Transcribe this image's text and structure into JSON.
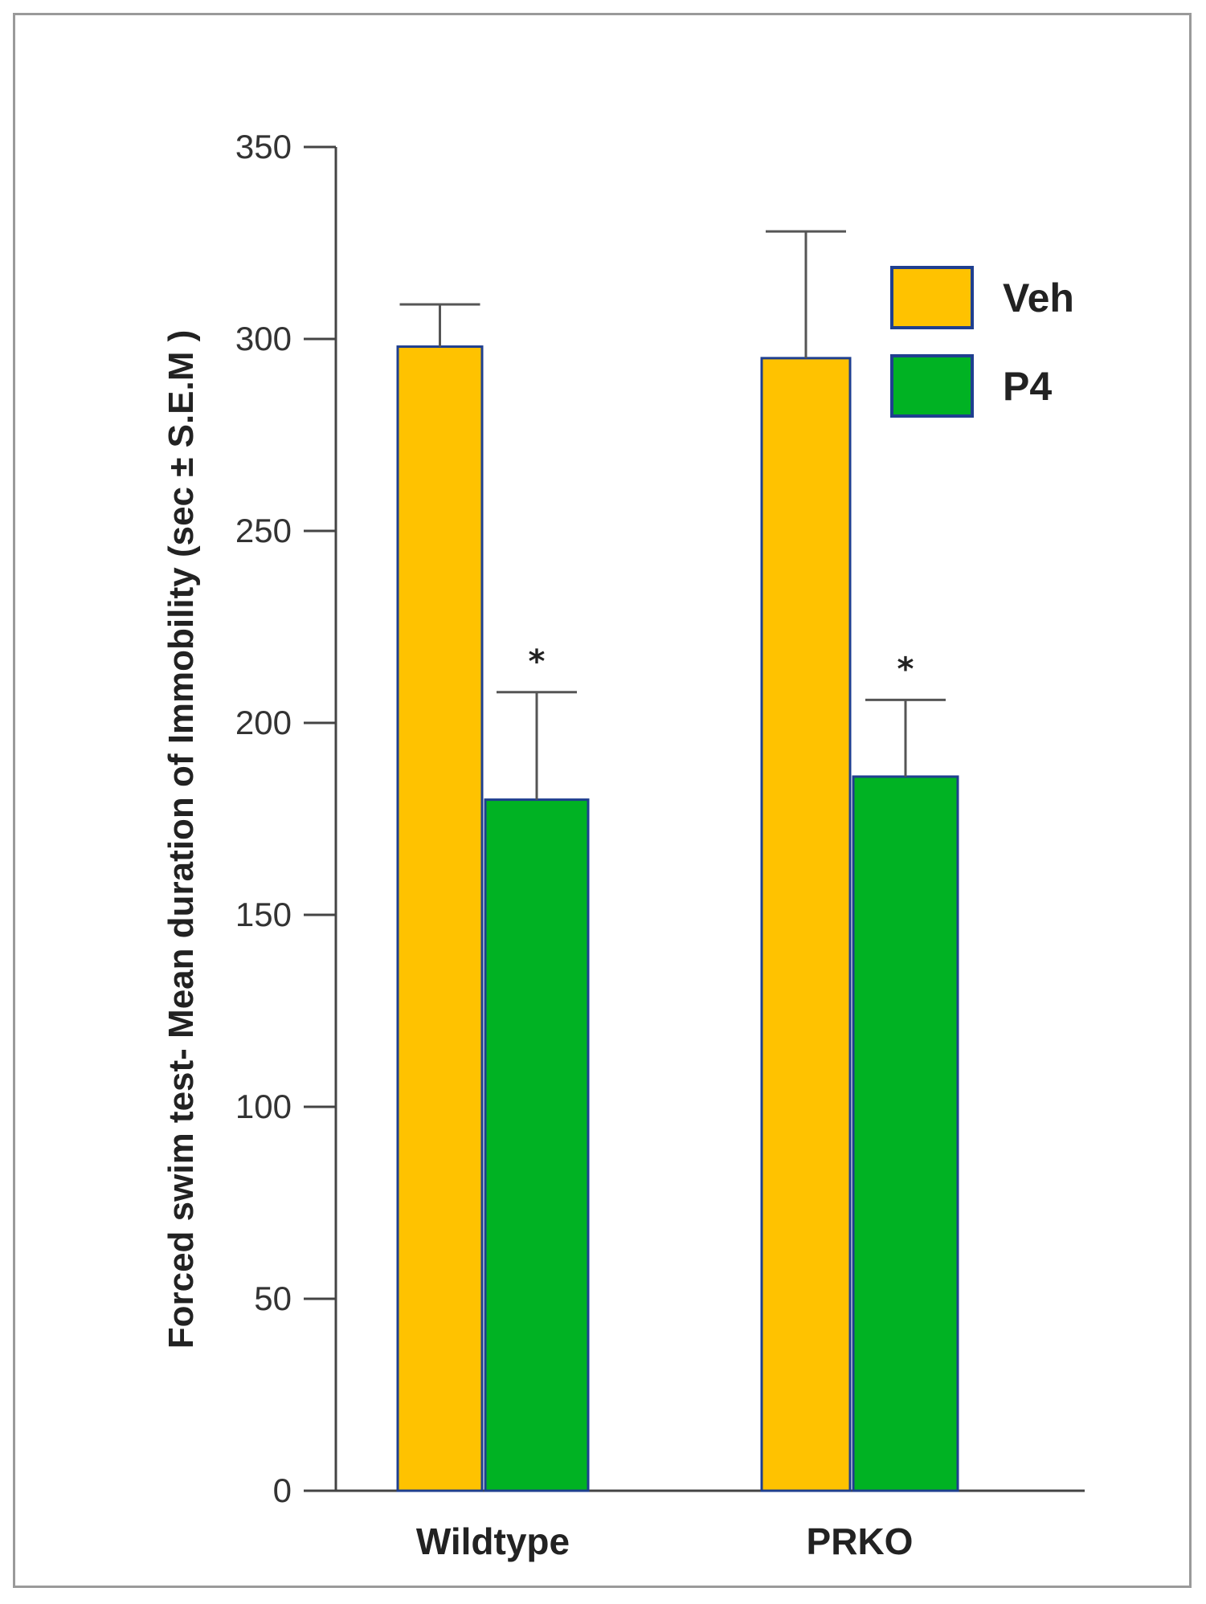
{
  "chart_data": {
    "type": "bar",
    "categories": [
      "Wildtype",
      "PRKO"
    ],
    "series": [
      {
        "name": "Veh",
        "color": "#ffc200",
        "values": [
          298,
          295
        ],
        "errors": [
          11,
          33
        ],
        "annotations": [
          "",
          ""
        ]
      },
      {
        "name": "P4",
        "color": "#00b223",
        "values": [
          180,
          186
        ],
        "errors": [
          28,
          20
        ],
        "annotations": [
          "*",
          "*"
        ]
      }
    ],
    "ylabel": "Forced swim test- Mean duration of Immobility (sec ± S.E.M )",
    "ylim": [
      0,
      350
    ],
    "yticks": [
      0,
      50,
      100,
      150,
      200,
      250,
      300,
      350
    ],
    "legend_position": "top-right",
    "grid": false,
    "bar_outline_color": "#1f3f8f"
  }
}
